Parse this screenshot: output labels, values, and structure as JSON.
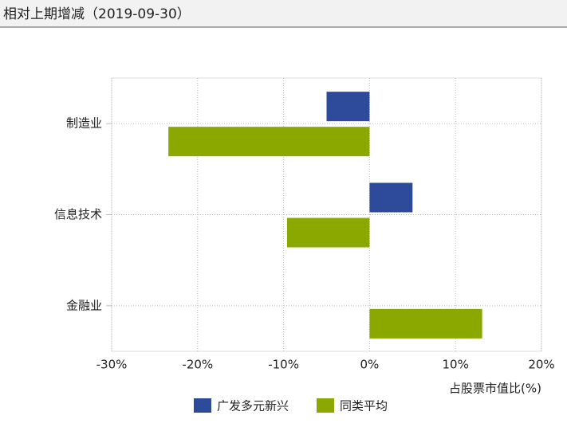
{
  "chart_data": {
    "type": "hbar",
    "title": "相对上期增减（2019-09-30）",
    "categories": [
      "制造业",
      "信息技术",
      "金融业"
    ],
    "series": [
      {
        "name": "广发多元新兴",
        "color": "#2e4a9a",
        "values": [
          -5,
          5,
          0
        ]
      },
      {
        "name": "同类平均",
        "color": "#8aa800",
        "values": [
          -23.4,
          -9.6,
          13.1
        ]
      }
    ],
    "xlim": [
      -30,
      20
    ],
    "xticks": [
      {
        "value": -30,
        "label": "-30%"
      },
      {
        "value": -20,
        "label": "-20%"
      },
      {
        "value": -10,
        "label": "-10%"
      },
      {
        "value": 0,
        "label": "0%"
      },
      {
        "value": 10,
        "label": "10%"
      },
      {
        "value": 20,
        "label": "20%"
      }
    ],
    "x_label": "占股票市值比(%)",
    "grid": true
  }
}
